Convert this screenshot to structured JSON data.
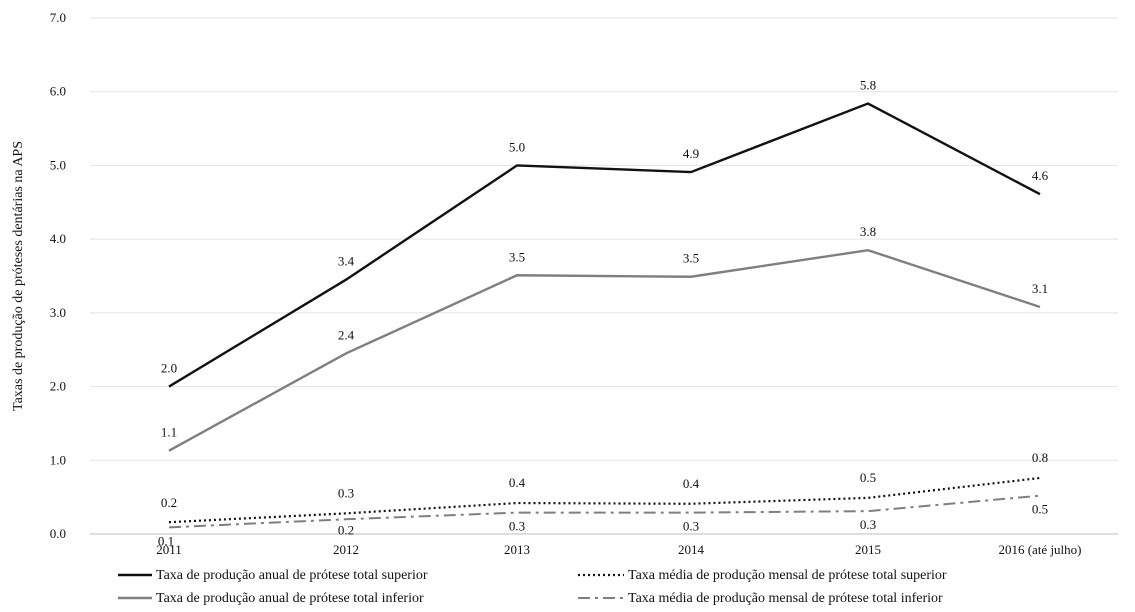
{
  "chart_data": {
    "type": "line",
    "ylabel": "Taxas de produção de próteses dentárias na APS",
    "xlabel": "",
    "ylim": [
      0,
      7
    ],
    "yticks": [
      "0.0",
      "1.0",
      "2.0",
      "3.0",
      "4.0",
      "5.0",
      "6.0",
      "7.0"
    ],
    "categories": [
      "2011",
      "2012",
      "2013",
      "2014",
      "2015",
      "2016 (até julho)"
    ],
    "grid": "horizontal",
    "legend_position": "bottom",
    "series": [
      {
        "name": "Taxa de produção anual de prótese total superior",
        "values": [
          2.0,
          3.45,
          5.0,
          4.91,
          5.84,
          4.61
        ],
        "labels": [
          "2.0",
          "3.4",
          "5.0",
          "4.9",
          "5.8",
          "4.6"
        ],
        "color": "#111111",
        "dash": "solid"
      },
      {
        "name": "Taxa de produção anual de prótese total inferior",
        "values": [
          1.13,
          2.45,
          3.51,
          3.49,
          3.85,
          3.08
        ],
        "labels": [
          "1.1",
          "2.4",
          "3.5",
          "3.5",
          "3.8",
          "3.1"
        ],
        "color": "#7f7f7f",
        "dash": "solid"
      },
      {
        "name": "Taxa média de produção mensal de prótese total superior",
        "values": [
          0.16,
          0.28,
          0.42,
          0.41,
          0.49,
          0.76
        ],
        "labels": [
          "0.2",
          "0.3",
          "0.4",
          "0.4",
          "0.5",
          "0.8"
        ],
        "color": "#111111",
        "dash": "dotted"
      },
      {
        "name": "Taxa média de produção mensal de prótese total inferior",
        "values": [
          0.09,
          0.2,
          0.29,
          0.29,
          0.31,
          0.52
        ],
        "labels": [
          "0.1",
          "0.2",
          "0.3",
          "0.3",
          "0.3",
          "0.5"
        ],
        "color": "#7f7f7f",
        "dash": "dashdot"
      }
    ]
  }
}
